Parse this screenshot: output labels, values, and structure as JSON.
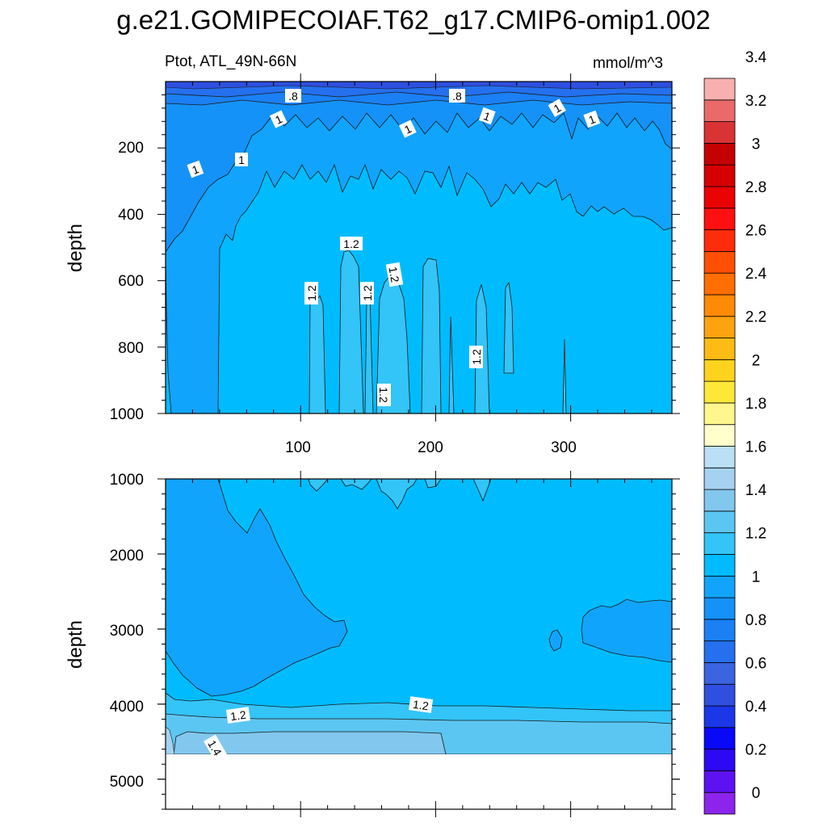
{
  "chart_data": [
    {
      "type": "heatmap",
      "title": "g.e21.GOMIPECOIAF.T62_g17.CMIP6-omip1.002",
      "left_label": "Ptot, ATL_49N-66N",
      "right_label": "mmol/m^3",
      "ylabel": "depth",
      "xlabel": "",
      "xlim": [
        0,
        375
      ],
      "ylim": [
        1000,
        0
      ],
      "x_ticks": [
        "100",
        "200",
        "300"
      ],
      "y_ticks": [
        "200",
        "400",
        "600",
        "800",
        "1000"
      ],
      "contour_labels": [
        ".8",
        ".8",
        "1",
        "1",
        "1",
        "1",
        "1",
        "1",
        "1",
        "1.2",
        "1.2",
        "1.2",
        "1.2",
        "1.2",
        "1.2"
      ]
    },
    {
      "type": "heatmap",
      "ylabel": "depth",
      "xlabel": "",
      "xlim": [
        0,
        375
      ],
      "ylim": [
        5400,
        1000
      ],
      "y_ticks": [
        "1000",
        "2000",
        "3000",
        "4000",
        "5000"
      ],
      "contour_labels": [
        "1.2",
        "1.2",
        "1.4"
      ]
    }
  ],
  "colorbar": {
    "levels": [
      "0",
      "0.2",
      "0.4",
      "0.6",
      "0.8",
      "1",
      "1.2",
      "1.4",
      "1.6",
      "1.8",
      "2",
      "2.2",
      "2.4",
      "2.6",
      "2.8",
      "3",
      "3.2",
      "3.4"
    ],
    "colors": [
      "#8c24ec",
      "#5d12f2",
      "#2d08f5",
      "#0909f8",
      "#1a38e8",
      "#2e4fe0",
      "#3a64e0",
      "#2470ee",
      "#1a80f4",
      "#1592f8",
      "#11a4fc",
      "#00bcff",
      "#33c4f8",
      "#5cc6f2",
      "#82c7ee",
      "#a4d2f0",
      "#bbe0f5",
      "#ffffcb",
      "#fff68d",
      "#fde838",
      "#fed31e",
      "#fdbb13",
      "#fea30f",
      "#ff8a06",
      "#ff6e00",
      "#fe4f04",
      "#ff2c0c",
      "#ff1010",
      "#ea0303",
      "#d60000",
      "#c50000",
      "#d93333",
      "#ea6a6a",
      "#f8afaf"
    ]
  }
}
